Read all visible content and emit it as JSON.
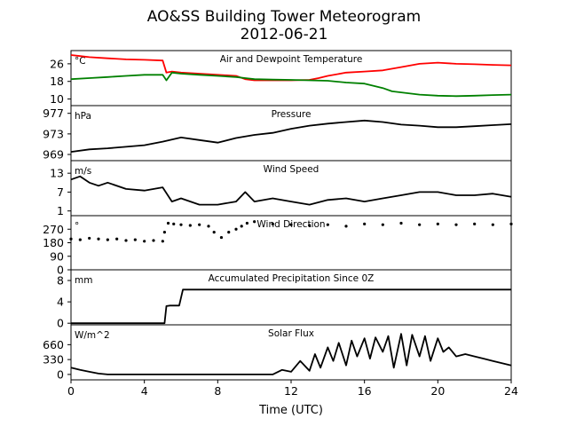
{
  "figure": {
    "title_line1": "AO&SS Building Tower Meteorogram",
    "title_line2": "2012-06-21",
    "xlabel": "Time (UTC)"
  },
  "chart_data": [
    {
      "type": "line",
      "title": "Air and Dewpoint Temperature",
      "unit": "°C",
      "xlim": [
        0,
        24
      ],
      "ylim": [
        7,
        32
      ],
      "yticks": [
        "26",
        "18",
        "10"
      ],
      "ytick_values": [
        26,
        18,
        10
      ],
      "xticks": [
        "0",
        "4",
        "8",
        "12",
        "16",
        "20",
        "24"
      ],
      "series": [
        {
          "color": "#ff0000",
          "x": [
            0,
            0.5,
            1,
            2,
            3,
            4,
            5,
            5.2,
            5.5,
            6,
            7,
            8,
            9,
            9.5,
            10,
            11,
            12,
            13,
            13.5,
            14,
            15,
            16,
            17,
            18,
            19,
            20,
            21,
            22,
            23,
            24
          ],
          "y": [
            30,
            29.5,
            29,
            28.5,
            28,
            27.8,
            27.5,
            22,
            22.5,
            22,
            21.5,
            21,
            20.5,
            19,
            18.5,
            18.5,
            18.5,
            18.7,
            19.5,
            20.5,
            22,
            22.5,
            23,
            24.5,
            26,
            26.5,
            26,
            25.8,
            25.5,
            25.3
          ]
        },
        {
          "color": "#008000",
          "x": [
            0,
            1,
            2,
            3,
            4,
            5,
            5.2,
            5.5,
            6,
            7,
            8,
            9,
            9.5,
            10,
            11,
            12,
            13,
            14,
            15,
            16,
            16.5,
            17,
            17.5,
            18,
            19,
            20,
            21,
            22,
            23,
            24
          ],
          "y": [
            19,
            19.5,
            20,
            20.5,
            21,
            21,
            18.5,
            22,
            21.5,
            21,
            20.5,
            20,
            19.5,
            19,
            18.8,
            18.7,
            18.5,
            18.3,
            17.5,
            17,
            16,
            15,
            13.5,
            13,
            12,
            11.5,
            11.3,
            11.5,
            11.8,
            12
          ]
        }
      ]
    },
    {
      "type": "line",
      "title": "Pressure",
      "unit": "hPa",
      "xlim": [
        0,
        24
      ],
      "ylim": [
        967.8,
        978.5
      ],
      "yticks": [
        "977",
        "973",
        "969"
      ],
      "ytick_values": [
        977,
        973,
        969
      ],
      "series": [
        {
          "color": "#000000",
          "x": [
            0,
            1,
            2,
            3,
            4,
            5,
            6,
            7,
            8,
            9,
            10,
            11,
            12,
            13,
            14,
            15,
            16,
            17,
            18,
            19,
            20,
            21,
            22,
            23,
            24
          ],
          "y": [
            969.5,
            970,
            970.2,
            970.5,
            970.8,
            971.5,
            972.3,
            971.8,
            971.3,
            972.2,
            972.8,
            973.2,
            974,
            974.6,
            975,
            975.3,
            975.6,
            975.3,
            974.8,
            974.6,
            974.3,
            974.3,
            974.5,
            974.7,
            974.9
          ]
        }
      ]
    },
    {
      "type": "line",
      "title": "Wind Speed",
      "unit": "m/s",
      "xlim": [
        0,
        24
      ],
      "ylim": [
        -0.5,
        17
      ],
      "yticks": [
        "13",
        "7",
        "1"
      ],
      "ytick_values": [
        13,
        7,
        1
      ],
      "series": [
        {
          "color": "#000000",
          "x": [
            0,
            0.5,
            1,
            1.5,
            2,
            3,
            4,
            5,
            5.5,
            6,
            7,
            8,
            9,
            9.5,
            10,
            11,
            12,
            13,
            14,
            15,
            16,
            17,
            18,
            19,
            20,
            21,
            22,
            23,
            24
          ],
          "y": [
            11,
            12,
            10,
            9,
            10,
            8,
            7.5,
            8.5,
            4,
            5,
            3,
            3,
            4,
            7,
            4,
            5,
            4,
            3,
            4.5,
            5,
            4,
            5,
            6,
            7,
            7,
            6,
            6,
            6.5,
            5.5
          ]
        }
      ]
    },
    {
      "type": "scatter",
      "title": "Wind Direction",
      "unit": "°",
      "xlim": [
        0,
        24
      ],
      "ylim": [
        0,
        360
      ],
      "yticks": [
        "270",
        "180",
        "90",
        "0"
      ],
      "ytick_values": [
        270,
        180,
        90,
        0
      ],
      "series": [
        {
          "color": "#000000",
          "x": [
            0,
            0.5,
            1,
            1.5,
            2,
            2.5,
            3,
            3.5,
            4,
            4.5,
            5,
            5.1,
            5.3,
            5.6,
            6,
            6.5,
            7,
            7.5,
            7.8,
            8.2,
            8.6,
            9,
            9.3,
            9.6,
            10,
            11,
            12,
            13,
            14,
            15,
            16,
            17,
            18,
            19,
            20,
            21,
            22,
            23,
            24
          ],
          "y": [
            205,
            200,
            210,
            205,
            200,
            205,
            195,
            200,
            190,
            195,
            190,
            250,
            310,
            305,
            300,
            295,
            300,
            290,
            250,
            215,
            250,
            270,
            290,
            310,
            320,
            305,
            300,
            295,
            300,
            290,
            305,
            300,
            310,
            300,
            305,
            300,
            305,
            300,
            305
          ]
        }
      ]
    },
    {
      "type": "line",
      "title": "Accumulated Precipitation Since 0Z",
      "unit": "mm",
      "xlim": [
        0,
        24
      ],
      "ylim": [
        -0.3,
        10
      ],
      "yticks": [
        "8",
        "4",
        "0"
      ],
      "ytick_values": [
        8,
        4,
        0
      ],
      "series": [
        {
          "color": "#000000",
          "x": [
            0,
            5.1,
            5.2,
            5.4,
            5.9,
            6.1,
            24
          ],
          "y": [
            0,
            0,
            3.2,
            3.3,
            3.3,
            6.3,
            6.3
          ]
        }
      ]
    },
    {
      "type": "line",
      "title": "Solar Flux",
      "unit": "W/m^2",
      "xlim": [
        0,
        24
      ],
      "ylim": [
        -120,
        1100
      ],
      "yticks": [
        "660",
        "330",
        "0"
      ],
      "ytick_values": [
        660,
        330,
        0
      ],
      "series": [
        {
          "color": "#000000",
          "x": [
            0,
            0.5,
            1,
            1.5,
            2,
            4,
            8,
            10,
            11,
            11.5,
            12,
            12.5,
            13,
            13.3,
            13.6,
            14,
            14.3,
            14.6,
            15,
            15.3,
            15.6,
            16,
            16.3,
            16.6,
            17,
            17.3,
            17.6,
            18,
            18.3,
            18.6,
            19,
            19.3,
            19.6,
            20,
            20.3,
            20.6,
            21,
            21.5,
            22,
            22.5,
            23,
            23.5,
            24
          ],
          "y": [
            150,
            100,
            60,
            20,
            0,
            0,
            0,
            0,
            0,
            100,
            60,
            300,
            80,
            450,
            150,
            600,
            300,
            700,
            200,
            750,
            400,
            800,
            350,
            820,
            500,
            850,
            150,
            900,
            200,
            880,
            400,
            850,
            300,
            800,
            500,
            600,
            400,
            450,
            400,
            350,
            300,
            250,
            200
          ]
        }
      ]
    }
  ]
}
